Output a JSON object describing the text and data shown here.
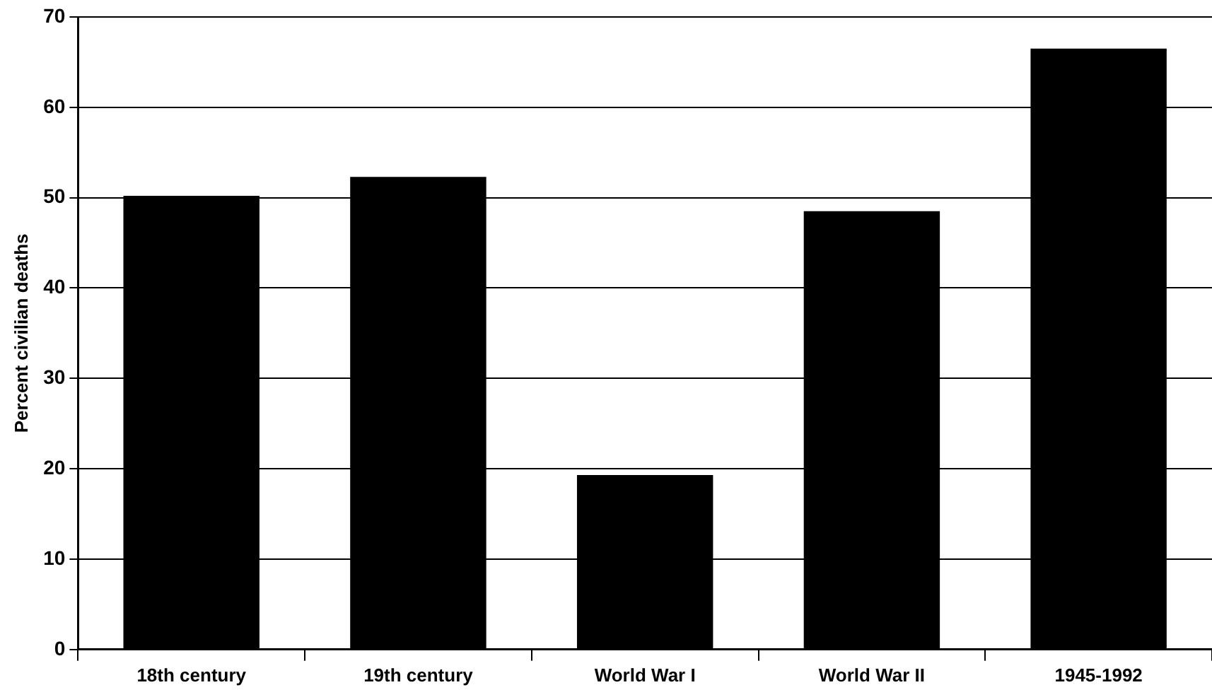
{
  "chart_data": {
    "type": "bar",
    "ylabel": "Percent civilian deaths",
    "categories": [
      "18th century",
      "19th century",
      "World War I",
      "World War II",
      "1945-1992"
    ],
    "values": [
      50.2,
      52.3,
      19.3,
      48.5,
      66.5
    ],
    "color": "#000000",
    "ylim": [
      0,
      70
    ],
    "yticks": [
      0,
      10,
      20,
      30,
      40,
      50,
      60,
      70
    ],
    "grid": "y",
    "legend": false
  }
}
